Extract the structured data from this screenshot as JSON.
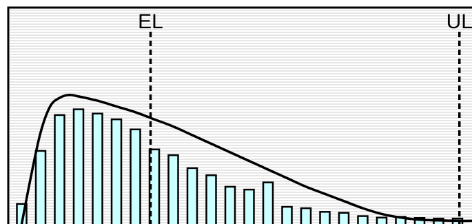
{
  "chart_data": {
    "type": "bar",
    "title": "",
    "xlabel": "",
    "ylabel": "",
    "grid": "horizontal",
    "values": [
      0.14,
      0.51,
      0.76,
      0.8,
      0.77,
      0.73,
      0.66,
      0.52,
      0.48,
      0.39,
      0.34,
      0.26,
      0.24,
      0.29,
      0.12,
      0.11,
      0.085,
      0.078,
      0.055,
      0.045,
      0.05,
      0.042,
      0.038,
      0.038
    ],
    "ylim": [
      0,
      1
    ],
    "curve": {
      "x": [
        0,
        0.5,
        1,
        1.5,
        2,
        2.5,
        3,
        4,
        5,
        6,
        7,
        8,
        9,
        10,
        11,
        12,
        13,
        14,
        15,
        16,
        17,
        18,
        19,
        20,
        21,
        22,
        23,
        23.8
      ],
      "y": [
        0.0,
        0.34,
        0.64,
        0.82,
        0.88,
        0.9,
        0.89,
        0.86,
        0.82,
        0.78,
        0.73,
        0.68,
        0.62,
        0.56,
        0.5,
        0.44,
        0.38,
        0.32,
        0.26,
        0.21,
        0.16,
        0.11,
        0.07,
        0.045,
        0.03,
        0.025,
        0.022,
        0.022
      ]
    },
    "reference_lines": [
      {
        "label": "EL",
        "x": 6.8
      },
      {
        "label": "UL",
        "x": 23.1
      }
    ],
    "colors": {
      "bar_fill": "#ccffff",
      "bar_stroke": "#000000",
      "curve": "#000000",
      "grid": "#cccccc",
      "reference_line": "#000000"
    }
  }
}
